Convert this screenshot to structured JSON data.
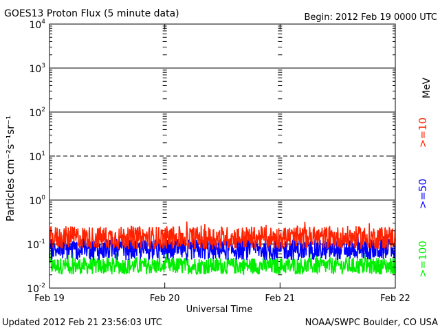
{
  "header": {
    "title": "GOES13 Proton Flux (5 minute data)",
    "begin": "Begin: 2012 Feb 19 0000 UTC"
  },
  "footer": {
    "updated": "Updated 2012 Feb 21 23:56:03 UTC",
    "credit": "NOAA/SWPC Boulder, CO USA"
  },
  "chart_data": {
    "type": "line",
    "title": "GOES13 Proton Flux (5 minute data)",
    "xlabel": "Universal Time",
    "ylabel": "Particles cm⁻²s⁻¹sr⁻¹",
    "yscale": "log",
    "ylim": [
      0.01,
      10000
    ],
    "xlim": [
      "Feb 19",
      "Feb 22"
    ],
    "x_ticks": [
      "Feb 19",
      "Feb 20",
      "Feb 21",
      "Feb 22"
    ],
    "y_ticks": [
      {
        "value": 0.01,
        "base": "10",
        "exp": "-2"
      },
      {
        "value": 0.1,
        "base": "10",
        "exp": "-1"
      },
      {
        "value": 1,
        "base": "10",
        "exp": "0"
      },
      {
        "value": 10,
        "base": "10",
        "exp": "1"
      },
      {
        "value": 100,
        "base": "10",
        "exp": "2"
      },
      {
        "value": 1000,
        "base": "10",
        "exp": "3"
      },
      {
        "value": 10000,
        "base": "10",
        "exp": "4"
      }
    ],
    "threshold_lines": [
      {
        "value": 0.1,
        "style": "solid"
      },
      {
        "value": 1,
        "style": "solid"
      },
      {
        "value": 10,
        "style": "dashed"
      },
      {
        "value": 100,
        "style": "solid"
      },
      {
        "value": 1000,
        "style": "solid"
      }
    ],
    "unit_label": "MeV",
    "series": [
      {
        "name": ">=10",
        "color": "#ff2200",
        "base": 0.14,
        "spread": 0.6,
        "peak": 0.33
      },
      {
        "name": ">=50",
        "color": "#0000ff",
        "base": 0.075,
        "spread": 0.55,
        "peak": 0.16
      },
      {
        "name": ">=100",
        "color": "#00ee00",
        "base": 0.032,
        "spread": 0.45,
        "peak": 0.075
      }
    ],
    "samples_per_day": 288,
    "days": 3
  }
}
